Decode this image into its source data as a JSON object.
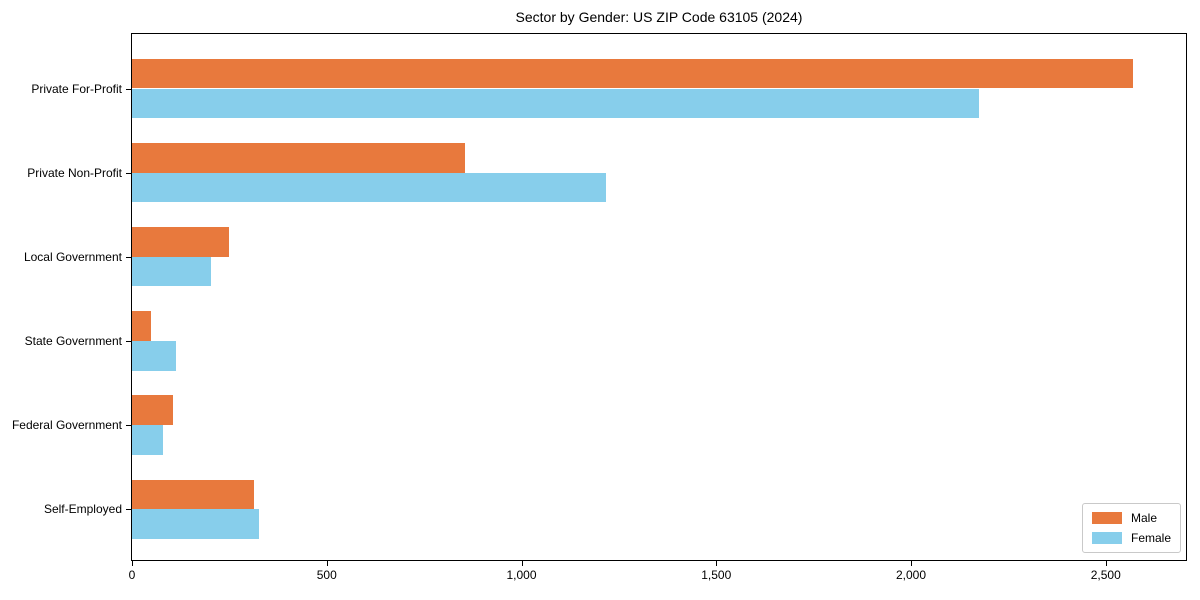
{
  "chart_data": {
    "type": "bar",
    "orientation": "horizontal",
    "title": "Sector by Gender: US ZIP Code 63105 (2024)",
    "categories": [
      "Private For-Profit",
      "Private Non-Profit",
      "Local Government",
      "State Government",
      "Federal Government",
      "Self-Employed"
    ],
    "series": [
      {
        "name": "Male",
        "color": "#E8793D",
        "values": [
          2570,
          855,
          250,
          50,
          106,
          313
        ]
      },
      {
        "name": "Female",
        "color": "#87CEEB",
        "values": [
          2175,
          1217,
          204,
          114,
          80,
          326
        ]
      }
    ],
    "xlabel": "",
    "ylabel": "",
    "xlim": [
      0,
      2706
    ],
    "xticks": [
      {
        "value": 0,
        "label": "0"
      },
      {
        "value": 500,
        "label": "500"
      },
      {
        "value": 1000,
        "label": "1,000"
      },
      {
        "value": 1500,
        "label": "1,500"
      },
      {
        "value": 2000,
        "label": "2,000"
      },
      {
        "value": 2500,
        "label": "2,500"
      }
    ],
    "grid": false,
    "legend_position": "lower right",
    "colors": {
      "axis": "#000000",
      "legend_border": "#c9c9c9",
      "background": "#ffffff"
    }
  }
}
